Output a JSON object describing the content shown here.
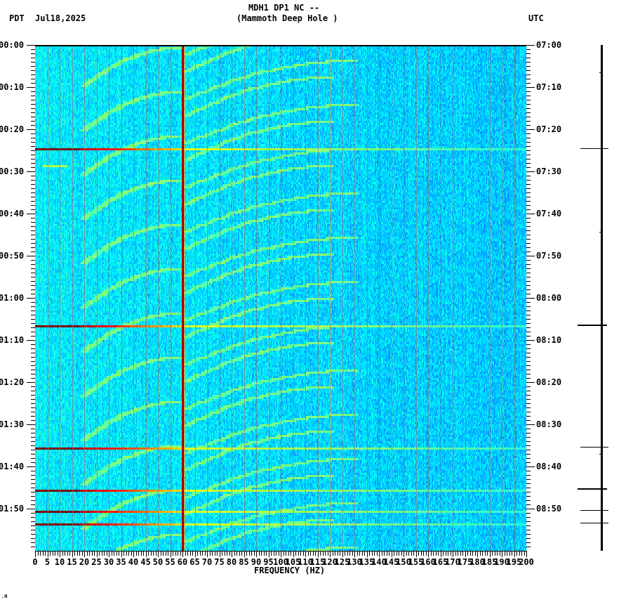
{
  "header": {
    "station_line": "MDH1 DP1 NC --",
    "location_line": "(Mammoth Deep Hole )",
    "left_tz": "PDT",
    "date": "Jul18,2025",
    "right_tz": "UTC"
  },
  "footer_mark": ".H",
  "chart_data": {
    "type": "heatmap",
    "title": "MDH1 DP1 NC -- (Mammoth Deep Hole )",
    "xlabel": "FREQUENCY (HZ)",
    "ylabel_left": "PDT",
    "ylabel_right": "UTC",
    "xlim": [
      0,
      200
    ],
    "x_ticks": [
      0,
      5,
      10,
      15,
      20,
      25,
      30,
      35,
      40,
      45,
      50,
      55,
      60,
      65,
      70,
      75,
      80,
      85,
      90,
      95,
      100,
      105,
      110,
      115,
      120,
      125,
      130,
      135,
      140,
      145,
      150,
      155,
      160,
      165,
      170,
      175,
      180,
      185,
      190,
      195,
      200
    ],
    "x_tick_labels": [
      "0",
      "5",
      "10",
      "15",
      "20",
      "25",
      "30",
      "35",
      "40",
      "45",
      "50",
      "55",
      "60",
      "65",
      "70",
      "75",
      "80",
      "85",
      "90",
      "95",
      "100",
      "105",
      "110",
      "115",
      "120",
      "125",
      "130",
      "135",
      "140",
      "145",
      "150",
      "155",
      "160",
      "165",
      "170",
      "175",
      "180",
      "185",
      "190",
      "195",
      "200"
    ],
    "ylim_minutes": [
      0,
      120
    ],
    "y_ticks_left": [
      "00:00",
      "00:10",
      "00:20",
      "00:30",
      "00:40",
      "00:50",
      "01:00",
      "01:10",
      "01:20",
      "01:30",
      "01:40",
      "01:50"
    ],
    "y_ticks_right": [
      "07:00",
      "07:10",
      "07:20",
      "07:30",
      "07:40",
      "07:50",
      "08:00",
      "08:10",
      "08:20",
      "08:30",
      "08:40",
      "08:50"
    ],
    "minor_tick_interval_minutes": 1,
    "colormap": "jet",
    "persistent_lines_hz": [
      {
        "freq": 60,
        "intensity": "max",
        "color": "#8b0000"
      },
      {
        "freq": 120,
        "intensity": "moderate",
        "color": "#c8e040"
      },
      {
        "freq": 180,
        "intensity": "moderate",
        "color": "#d8c040"
      },
      {
        "freq": 4,
        "intensity": "weak",
        "color": "#60e0a0"
      }
    ],
    "broadband_events_minutes": [
      24.5,
      66.5,
      95.3,
      105.3,
      110.3,
      113.3
    ],
    "short_event": {
      "minute": 28.5,
      "freq_range": [
        3,
        13
      ]
    },
    "notes": "Repeating curved harmonic streaks (arcs rising in frequency over time) across 20-130 Hz; background noise predominantly blue (low power)."
  },
  "indicator": {
    "ticks": [
      {
        "minute": 6.5,
        "len": "tiny"
      },
      {
        "minute": 24.5,
        "len": "long"
      },
      {
        "minute": 44.3,
        "len": "tiny"
      },
      {
        "minute": 66.5,
        "len": "long-thick"
      },
      {
        "minute": 95.3,
        "len": "long"
      },
      {
        "minute": 97.0,
        "len": "tiny"
      },
      {
        "minute": 105.3,
        "len": "long-thick"
      },
      {
        "minute": 110.3,
        "len": "long"
      },
      {
        "minute": 113.3,
        "len": "long"
      }
    ]
  }
}
